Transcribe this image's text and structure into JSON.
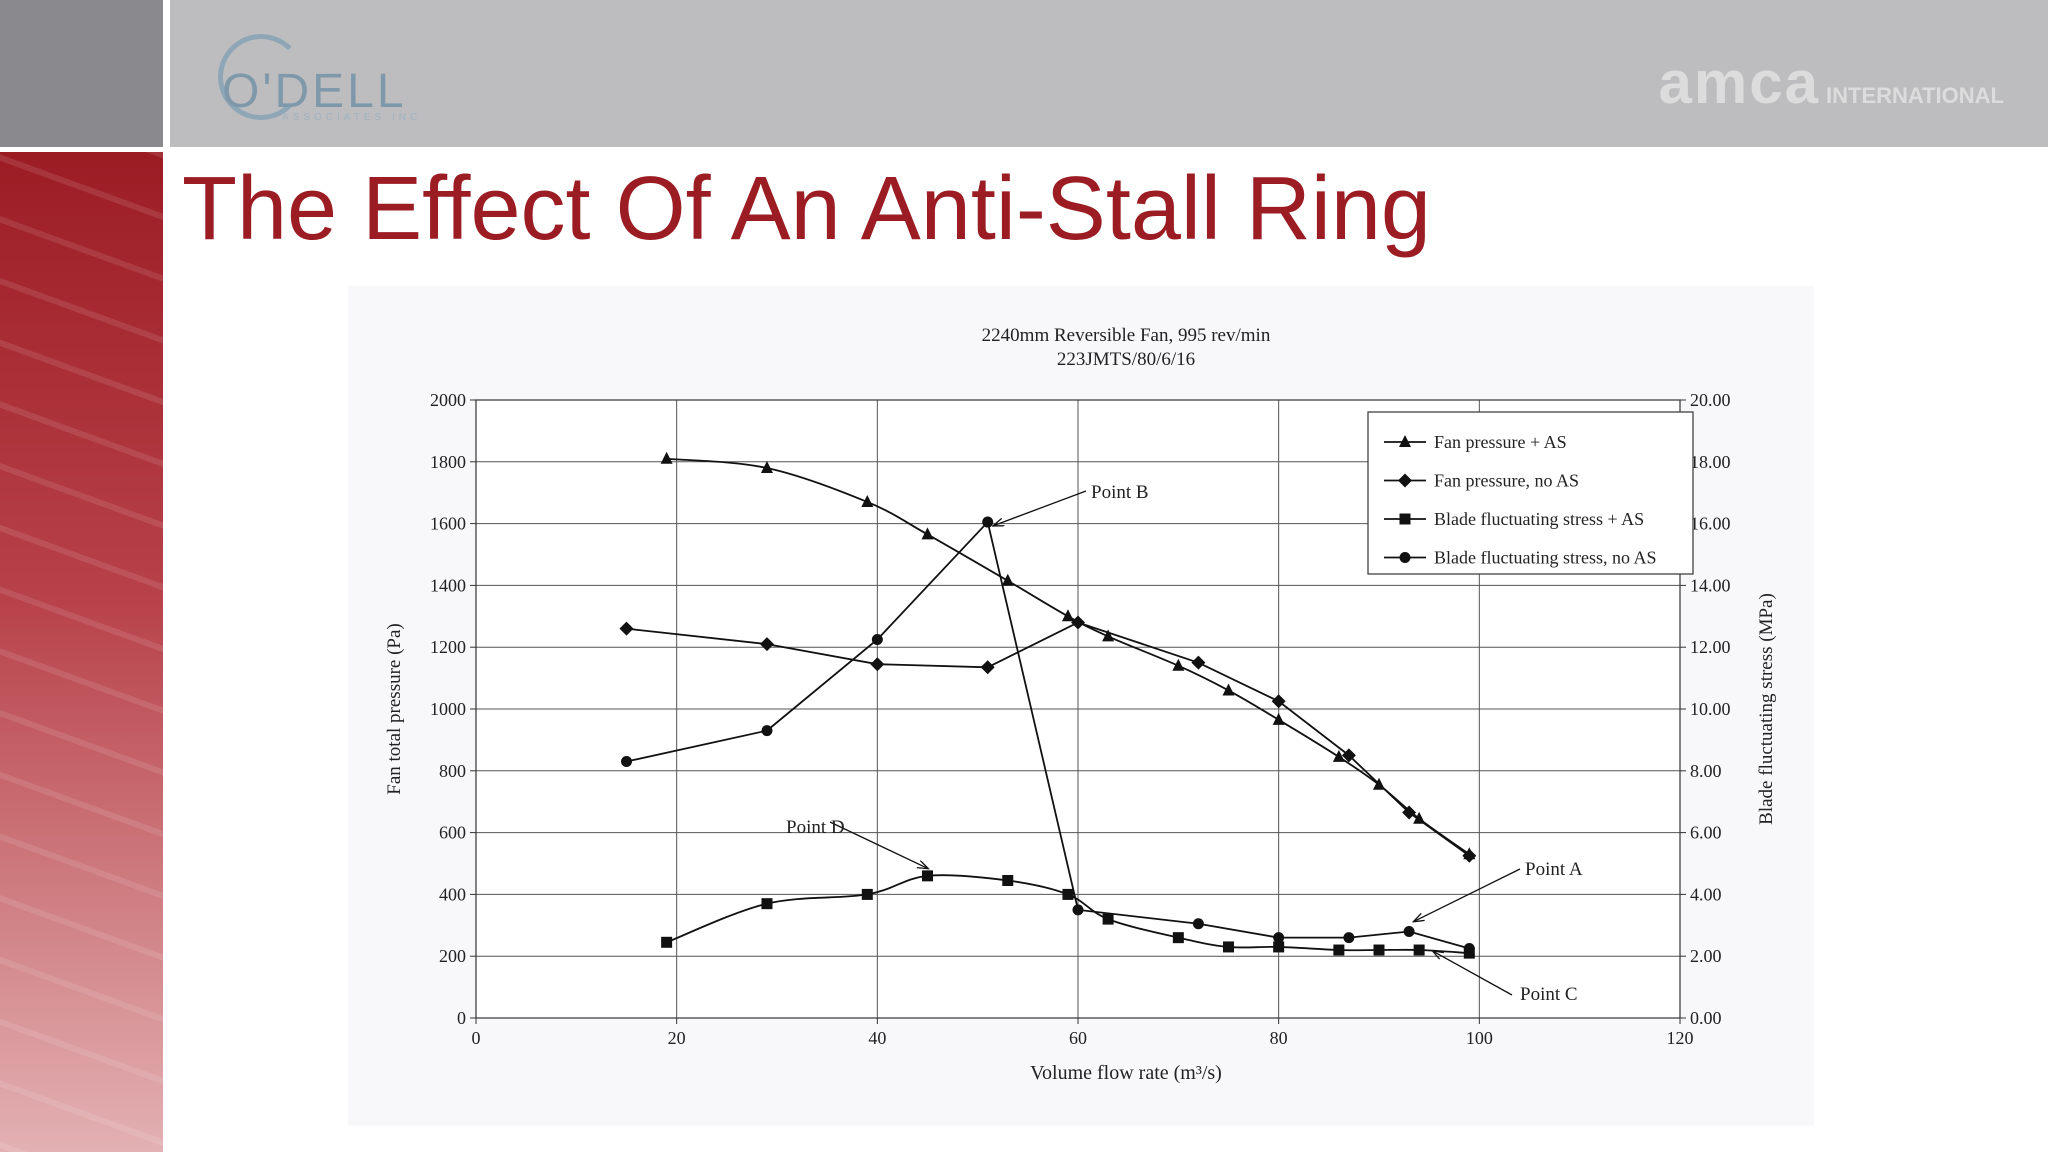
{
  "slide": {
    "title": "The Effect Of An Anti-Stall Ring",
    "logo_left_text": "O'DELL",
    "logo_left_sub": "ASSOCIATES INC",
    "logo_right_main": "amca",
    "logo_right_sub": "INTERNATIONAL"
  },
  "colors": {
    "title": "#9b1c23",
    "header": "#bdbdbf",
    "side_panel": "#9c1c24"
  },
  "chart_data": {
    "type": "line",
    "title": "2240mm Reversible Fan, 995 rev/min",
    "subtitle": "223JMTS/80/6/16",
    "xlabel": "Volume flow rate (m³/s)",
    "ylabel": "Fan total pressure (Pa)",
    "y2label": "Blade fluctuating stress (MPa)",
    "xlim": [
      0,
      120
    ],
    "ylim": [
      0,
      2000
    ],
    "y2lim": [
      0,
      20
    ],
    "x_ticks": [
      "0",
      "20",
      "40",
      "60",
      "80",
      "100",
      "120"
    ],
    "y_ticks": [
      "0",
      "200",
      "400",
      "600",
      "800",
      "1000",
      "1200",
      "1400",
      "1600",
      "1800",
      "2000"
    ],
    "y2_ticks": [
      "0.00",
      "2.00",
      "4.00",
      "6.00",
      "8.00",
      "10.00",
      "12.00",
      "14.00",
      "16.00",
      "18.00",
      "20.00"
    ],
    "grid": true,
    "legend_position": "top-right",
    "series": [
      {
        "name": "Fan pressure + AS",
        "axis": "left",
        "marker": "triangle",
        "x": [
          19,
          29,
          39,
          45,
          53,
          59,
          63,
          70,
          75,
          80,
          86,
          90,
          94,
          99
        ],
        "y": [
          1810,
          1780,
          1670,
          1565,
          1415,
          1300,
          1235,
          1140,
          1060,
          965,
          845,
          755,
          645,
          530
        ]
      },
      {
        "name": "Fan pressure, no AS",
        "axis": "left",
        "marker": "diamond",
        "x": [
          15,
          29,
          40,
          51,
          60,
          72,
          80,
          87,
          93,
          99
        ],
        "y": [
          1260,
          1210,
          1145,
          1135,
          1280,
          1150,
          1025,
          850,
          665,
          525
        ]
      },
      {
        "name": "Blade fluctuating stress + AS",
        "axis": "right",
        "marker": "square",
        "x": [
          19,
          29,
          39,
          45,
          53,
          59,
          63,
          70,
          75,
          80,
          86,
          90,
          94,
          99
        ],
        "y": [
          2.45,
          3.7,
          4.0,
          4.6,
          4.45,
          4.0,
          3.2,
          2.6,
          2.3,
          2.3,
          2.2,
          2.2,
          2.2,
          2.1
        ]
      },
      {
        "name": "Blade fluctuating stress, no AS",
        "axis": "right",
        "marker": "circle",
        "x": [
          15,
          29,
          40,
          51,
          60,
          72,
          80,
          87,
          93,
          99
        ],
        "y": [
          8.3,
          9.3,
          12.25,
          16.05,
          3.5,
          3.05,
          2.6,
          2.6,
          2.8,
          2.25
        ]
      }
    ],
    "annotations": [
      {
        "text": "Point A",
        "target_x": 94,
        "target_y2": 3.0
      },
      {
        "text": "Point B",
        "target_x": 52,
        "target_y2": 16.0
      },
      {
        "text": "Point C",
        "target_x": 96,
        "target_y2": 1.9
      },
      {
        "text": "Point D",
        "target_x": 45,
        "target_y2": 4.65
      }
    ]
  }
}
